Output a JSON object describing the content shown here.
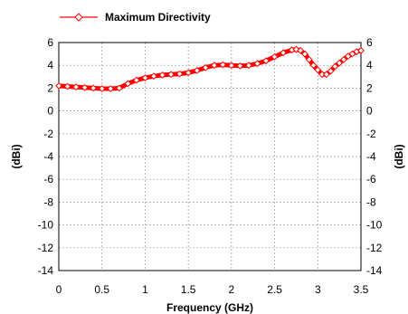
{
  "chart_data": {
    "type": "line",
    "title": "",
    "xlabel": "Frequency (GHz)",
    "ylabel_left": "(dBi)",
    "ylabel_right": "(dBi)",
    "xlim": [
      0,
      3.5
    ],
    "ylim": [
      -14,
      6
    ],
    "grid": true,
    "legend_position": "top-left",
    "x_ticks": [
      "0",
      "0.5",
      "1",
      "1.5",
      "2",
      "2.5",
      "3",
      "3.5"
    ],
    "x_tick_values": [
      0,
      0.5,
      1,
      1.5,
      2,
      2.5,
      3,
      3.5
    ],
    "y_ticks": [
      "6",
      "4",
      "2",
      "0",
      "-2",
      "-4",
      "-6",
      "-8",
      "-10",
      "-12",
      "-14"
    ],
    "y_tick_values": [
      6,
      4,
      2,
      0,
      -2,
      -4,
      -6,
      -8,
      -10,
      -12,
      -14
    ],
    "series": [
      {
        "name": "Maximum Directivity",
        "color": "#ff0000",
        "marker": "diamond",
        "x": [
          0,
          0.1,
          0.2,
          0.3,
          0.4,
          0.5,
          0.6,
          0.7,
          0.8,
          0.9,
          1.0,
          1.1,
          1.2,
          1.3,
          1.4,
          1.5,
          1.6,
          1.7,
          1.8,
          1.9,
          2.0,
          2.1,
          2.2,
          2.3,
          2.4,
          2.5,
          2.6,
          2.7,
          2.75,
          2.8,
          2.85,
          2.9,
          2.95,
          3.0,
          3.05,
          3.1,
          3.15,
          3.2,
          3.25,
          3.3,
          3.35,
          3.4,
          3.45,
          3.5
        ],
        "y": [
          2.2,
          2.15,
          2.1,
          2.05,
          2.0,
          1.95,
          1.95,
          2.0,
          2.4,
          2.7,
          2.9,
          3.05,
          3.15,
          3.2,
          3.25,
          3.35,
          3.55,
          3.8,
          4.0,
          4.05,
          4.0,
          3.95,
          4.0,
          4.15,
          4.4,
          4.75,
          5.1,
          5.35,
          5.4,
          5.3,
          5.0,
          4.5,
          4.0,
          3.6,
          3.2,
          3.2,
          3.5,
          3.9,
          4.2,
          4.5,
          4.8,
          5.0,
          5.2,
          5.3
        ]
      }
    ]
  }
}
